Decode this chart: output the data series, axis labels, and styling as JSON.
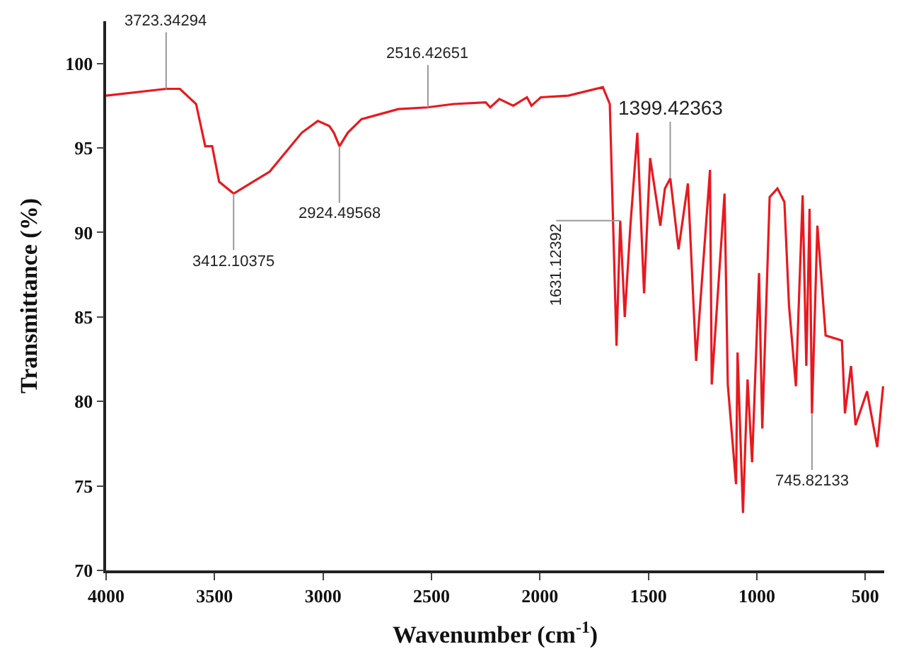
{
  "chart_data": {
    "type": "line",
    "xlabel": "Wavenumber (cm$^{-1}$)",
    "ylabel": "Transmittance (%)",
    "xlim": [
      4000,
      413
    ],
    "ylim": [
      70,
      102.5
    ],
    "xticks": [
      4000,
      3500,
      3000,
      2500,
      2000,
      1500,
      1000,
      500
    ],
    "yticks": [
      70,
      75,
      80,
      85,
      90,
      95,
      100
    ],
    "marker": "none",
    "line_style": "solid",
    "series": [
      {
        "color": "#e8191e",
        "x": [
          4000,
          3723,
          3660,
          3585,
          3543,
          3511,
          3479,
          3412,
          3246,
          3098,
          3024,
          2971,
          2950,
          2924,
          2886,
          2823,
          2653,
          2520,
          2399,
          2250,
          2229,
          2187,
          2123,
          2060,
          2039,
          1996,
          1869,
          1710,
          1678,
          1647,
          1630,
          1609,
          1583,
          1551,
          1520,
          1492,
          1445,
          1424,
          1399,
          1361,
          1318,
          1280,
          1216,
          1208,
          1149,
          1134,
          1096,
          1089,
          1064,
          1043,
          1022,
          990,
          975,
          941,
          905,
          873,
          852,
          820,
          789,
          772,
          757,
          746,
          721,
          683,
          608,
          594,
          566,
          545,
          492,
          445,
          418
        ],
        "values": [
          98.1,
          98.5,
          98.5,
          97.6,
          95.1,
          95.1,
          93.0,
          92.3,
          93.6,
          95.9,
          96.6,
          96.3,
          95.9,
          95.1,
          95.9,
          96.7,
          97.3,
          97.4,
          97.6,
          97.7,
          97.4,
          97.9,
          97.5,
          98.0,
          97.5,
          98.0,
          98.1,
          98.6,
          97.6,
          83.3,
          90.7,
          85.0,
          90.4,
          95.9,
          86.4,
          94.4,
          90.4,
          92.6,
          93.2,
          89.0,
          92.9,
          82.4,
          93.7,
          81.0,
          92.3,
          81.0,
          75.1,
          82.9,
          73.4,
          81.3,
          76.4,
          87.6,
          78.4,
          92.1,
          92.6,
          91.8,
          85.7,
          80.9,
          92.2,
          82.1,
          91.4,
          79.3,
          90.4,
          83.9,
          83.6,
          79.3,
          82.1,
          78.6,
          80.6,
          77.3,
          80.9
        ]
      }
    ],
    "annotations": [
      {
        "text": "3723.34294",
        "x": 3723.34294,
        "y": 98.5
      },
      {
        "text": "3412.10375",
        "x": 3412.10375,
        "y": 92.3
      },
      {
        "text": "2924.49568",
        "x": 2924.49568,
        "y": 95.1
      },
      {
        "text": "2516.42651",
        "x": 2516.42651,
        "y": 97.4
      },
      {
        "text": "1631.12392",
        "x": 1631.12392,
        "y": 90.7
      },
      {
        "text": "1399.42363",
        "x": 1399.42363,
        "y": 93.2
      },
      {
        "text": "745.82133",
        "x": 745.82133,
        "y": 79.3
      }
    ]
  }
}
